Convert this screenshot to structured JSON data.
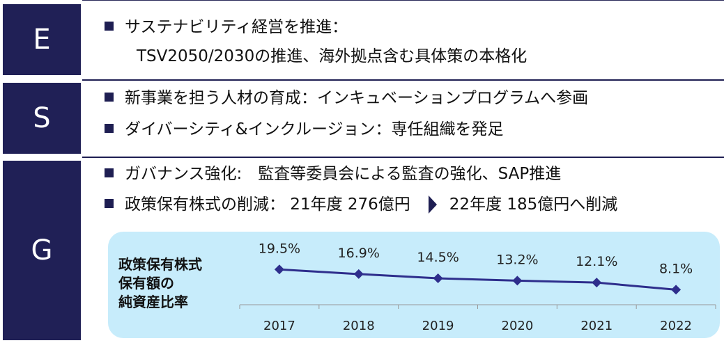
{
  "esg": {
    "e": {
      "label": "E",
      "line1": "サステナビリティ経営を推進：",
      "line2": "TSV2050/2030の推進、海外拠点含む具体策の本格化"
    },
    "s": {
      "label": "S",
      "item1": "新事業を担う人材の育成：インキュベーションプログラムへ参画",
      "item2": "ダイバーシティ&インクルージョン：専任組織を発足"
    },
    "g": {
      "label": "G",
      "item1": "ガバナンス強化:　監査等委員会による監査の強化、SAP推進",
      "item2_before": "政策保有株式の削減：  21年度 276億円",
      "item2_after": "22年度 185億円へ削減"
    }
  },
  "chart_title": [
    "政策保有株式",
    "保有額の",
    "純資産比率"
  ],
  "chart_data": {
    "type": "line",
    "title": "政策保有株式 保有額の 純資産比率",
    "x": [
      "2017",
      "2018",
      "2019",
      "2020",
      "2021",
      "2022"
    ],
    "series": [
      {
        "values": [
          19.5,
          16.9,
          14.5,
          13.2,
          12.1,
          8.1
        ],
        "labels": [
          "19.5%",
          "16.9%",
          "14.5%",
          "13.2%",
          "12.1%",
          "8.1%"
        ]
      }
    ],
    "ylim": [
      0,
      20
    ],
    "grid": false,
    "color": "#2e2e8c",
    "axis_color": "#999999"
  }
}
